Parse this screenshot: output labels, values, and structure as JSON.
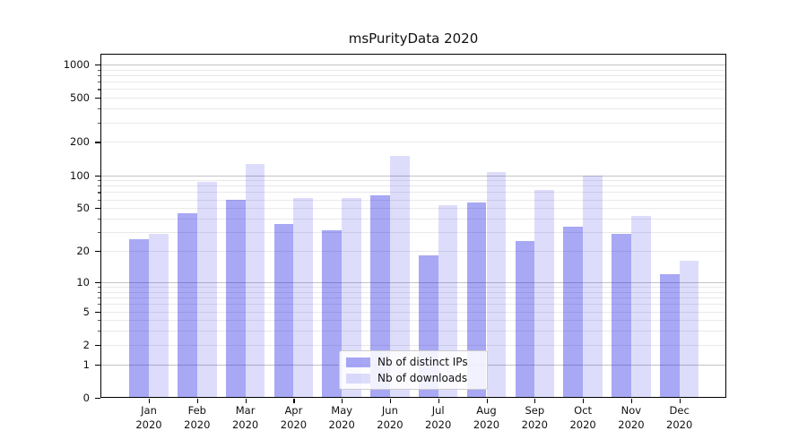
{
  "chart_data": {
    "type": "bar",
    "title": "msPurityData 2020",
    "x_tick_year": "2020",
    "categories": [
      "Jan",
      "Feb",
      "Mar",
      "Apr",
      "May",
      "Jun",
      "Jul",
      "Aug",
      "Sep",
      "Oct",
      "Nov",
      "Dec"
    ],
    "series": [
      {
        "name": "Nb of distinct IPs",
        "color": "rgba(25,25,230,0.38)",
        "values": [
          26,
          45,
          60,
          36,
          31,
          65,
          18,
          56,
          25,
          34,
          29,
          12
        ]
      },
      {
        "name": "Nb of downloads",
        "color": "rgba(25,25,230,0.15)",
        "values": [
          29,
          87,
          126,
          62,
          62,
          150,
          53,
          107,
          73,
          100,
          42,
          16
        ]
      }
    ],
    "y_axis": {
      "scale": "log1p",
      "ticks": [
        0,
        1,
        2,
        5,
        10,
        20,
        50,
        100,
        200,
        500,
        1000
      ],
      "minor_ticks": [
        2,
        3,
        4,
        5,
        6,
        7,
        8,
        9,
        20,
        30,
        40,
        50,
        60,
        70,
        80,
        90,
        200,
        300,
        400,
        500,
        600,
        700,
        800,
        900
      ],
      "major_gridlines": [
        1,
        10,
        100,
        1000
      ],
      "max": 1250
    },
    "grid": {
      "major_color": "#c3c3c3",
      "minor_color": "#e9e9e9"
    },
    "legend": {
      "position": "lower center"
    }
  }
}
